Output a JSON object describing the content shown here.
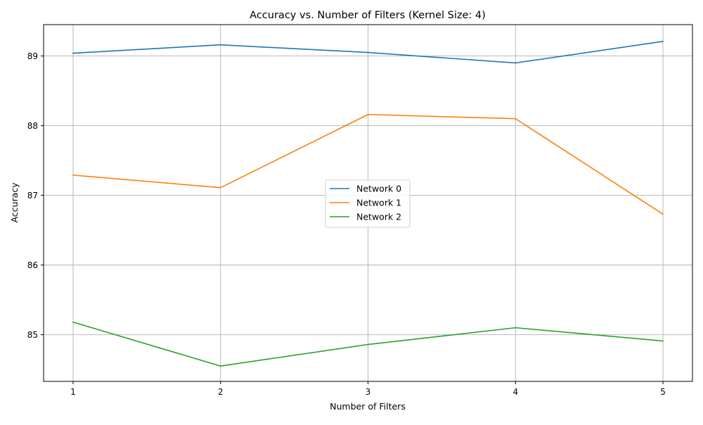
{
  "chart_data": {
    "type": "line",
    "title": "Accuracy vs. Number of Filters (Kernel Size: 4)",
    "xlabel": "Number of Filters",
    "ylabel": "Accuracy",
    "x": [
      1,
      2,
      3,
      4,
      5
    ],
    "x_tick_labels": [
      "1",
      "2",
      "3",
      "4",
      "5"
    ],
    "y_ticks": [
      85,
      86,
      87,
      88,
      89
    ],
    "y_tick_labels": [
      "85",
      "86",
      "87",
      "88",
      "89"
    ],
    "xlim": [
      0.8,
      5.2
    ],
    "ylim": [
      84.33,
      89.45
    ],
    "grid": true,
    "legend_position": "center",
    "series": [
      {
        "name": "Network 0",
        "color": "#1f77b4",
        "values": [
          89.04,
          89.16,
          89.05,
          88.9,
          89.21
        ]
      },
      {
        "name": "Network 1",
        "color": "#ff7f0e",
        "values": [
          87.29,
          87.11,
          88.16,
          88.1,
          86.73
        ]
      },
      {
        "name": "Network 2",
        "color": "#2ca02c",
        "values": [
          85.18,
          84.55,
          84.86,
          85.1,
          84.91
        ]
      }
    ]
  }
}
